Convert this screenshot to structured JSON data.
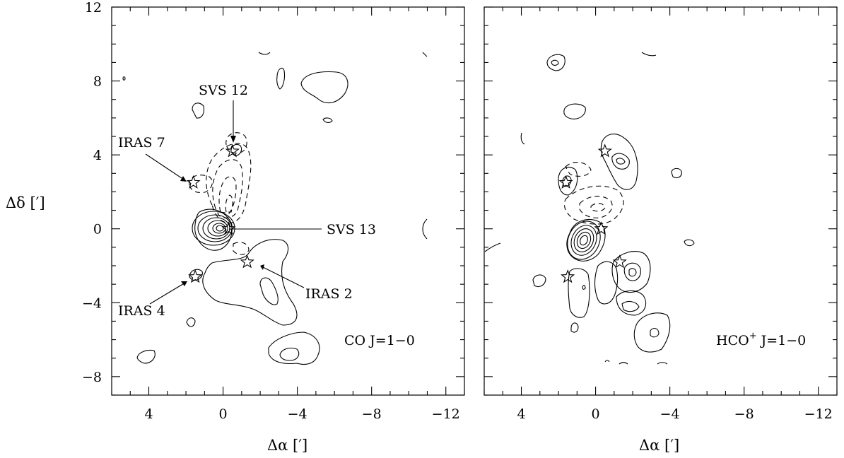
{
  "chart_data": [
    {
      "type": "contour",
      "panel": "left",
      "xlabel": "Δα [′]",
      "ylabel": "Δδ [′]",
      "xlim": [
        6,
        -13
      ],
      "ylim": [
        -9,
        12
      ],
      "xticks": [
        4,
        0,
        -4,
        -8,
        -12
      ],
      "xticklabels": [
        "4",
        "0",
        "−4",
        "−8",
        "−12"
      ],
      "yticks": [
        12,
        8,
        4,
        0,
        -4,
        -8
      ],
      "yticklabels": [
        "12",
        "8",
        "4",
        "0",
        "−4",
        "−8"
      ],
      "line_name": "CO J=1−0",
      "sources": [
        {
          "name": "SVS 12",
          "x": -0.5,
          "y": 4.2
        },
        {
          "name": "IRAS 7",
          "x": 1.6,
          "y": 2.5
        },
        {
          "name": "SVS 13",
          "x": -0.3,
          "y": 0.0
        },
        {
          "name": "IRAS 2",
          "x": -1.3,
          "y": -1.8
        },
        {
          "name": "IRAS 4",
          "x": 1.5,
          "y": -2.6
        }
      ],
      "labels": {
        "svs12": "SVS 12",
        "iras7": "IRAS 7",
        "svs13": "SVS 13",
        "iras2": "IRAS 2",
        "iras4": "IRAS 4",
        "line": "CO J=1−0"
      }
    },
    {
      "type": "contour",
      "panel": "right",
      "xlabel": "Δα [′]",
      "xlim": [
        6,
        -13
      ],
      "ylim": [
        -9,
        12
      ],
      "xticks": [
        4,
        0,
        -4,
        -8,
        -12
      ],
      "xticklabels": [
        "4",
        "0",
        "−4",
        "−8",
        "−12"
      ],
      "line_name_main": "HCO",
      "line_name_sup": "+",
      "line_name_rest": " J=1−0",
      "sources": [
        {
          "name": "SVS 12",
          "x": -0.5,
          "y": 4.2
        },
        {
          "name": "IRAS 7",
          "x": 1.6,
          "y": 2.5
        },
        {
          "name": "SVS 13",
          "x": -0.3,
          "y": 0.0
        },
        {
          "name": "IRAS 2",
          "x": -1.3,
          "y": -1.8
        },
        {
          "name": "IRAS 4",
          "x": 1.5,
          "y": -2.6
        }
      ]
    }
  ]
}
